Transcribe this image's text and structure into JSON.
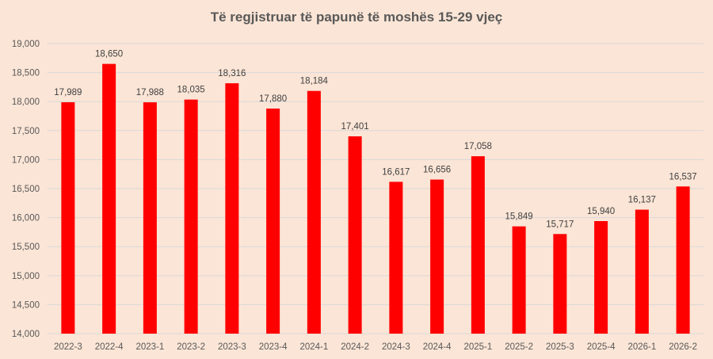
{
  "chart_data": {
    "type": "bar",
    "title": "Të regjistruar të papunë të moshës 15-29 vjeç",
    "xlabel": "",
    "ylabel": "",
    "categories": [
      "2022-3",
      "2022-4",
      "2023-1",
      "2023-2",
      "2023-3",
      "2023-4",
      "2024-1",
      "2024-2",
      "2024-3",
      "2024-4",
      "2025-1",
      "2025-2",
      "2025-3",
      "2025-4",
      "2026-1",
      "2026-2"
    ],
    "values": [
      17989,
      18650,
      17988,
      18035,
      18316,
      17880,
      18184,
      17401,
      16617,
      16656,
      17058,
      15849,
      15717,
      15940,
      16137,
      16537
    ],
    "value_labels": [
      "17,989",
      "18,650",
      "17,988",
      "18,035",
      "18,316",
      "17,880",
      "18,184",
      "17,401",
      "16,617",
      "16,656",
      "17,058",
      "15,849",
      "15,717",
      "15,940",
      "16,137",
      "16,537"
    ],
    "ylim": [
      14000,
      19000
    ],
    "yticks": [
      14000,
      14500,
      15000,
      15500,
      16000,
      16500,
      17000,
      17500,
      18000,
      18500,
      19000
    ],
    "ytick_labels": [
      "14,000",
      "14,500",
      "15,000",
      "15,500",
      "16,000",
      "16,500",
      "17,000",
      "17,500",
      "18,000",
      "18,500",
      "19,000"
    ],
    "grid": true,
    "legend": "none",
    "bar_color": "#ff0000",
    "grid_color": "#d9d9d9",
    "background_color": "#fbe5d6"
  }
}
